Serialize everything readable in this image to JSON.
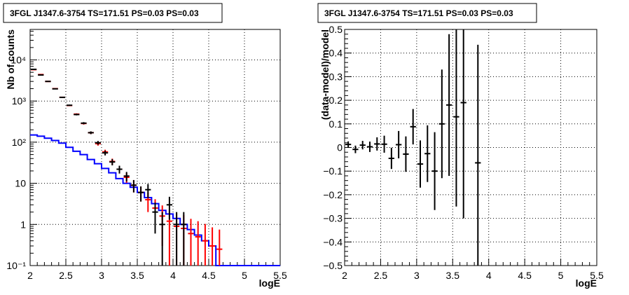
{
  "chart_data": [
    {
      "type": "histogram",
      "title": "3FGL J1347.6-3754 TS=171.51 PS=0.03 PS=0.03",
      "xlabel": "logE",
      "ylabel": "Nb of counts",
      "xlim": [
        2,
        5.5
      ],
      "ylim": [
        0.1,
        50000
      ],
      "yscale": "log",
      "grid": true,
      "x_ticks": [
        "2",
        "2.5",
        "3",
        "3.5",
        "4",
        "4.5",
        "5",
        "5.5"
      ],
      "y_ticks": [
        "10⁻¹",
        "1",
        "10",
        "10²",
        "10³",
        "10⁴"
      ],
      "colors": {
        "data": "#000000",
        "model": "#ff0000",
        "component": "#0000ff"
      },
      "series": [
        {
          "style": "points-with-errors",
          "color": "#000000",
          "x": [
            2.05,
            2.15,
            2.25,
            2.35,
            2.45,
            2.55,
            2.65,
            2.75,
            2.85,
            2.95,
            3.05,
            3.15,
            3.25,
            3.35,
            3.45,
            3.55,
            3.65,
            3.75,
            3.85,
            3.95,
            4.05,
            4.15
          ],
          "y": [
            5900,
            4300,
            3000,
            1980,
            1230,
            790,
            470,
            290,
            170,
            97,
            55,
            33,
            22,
            15,
            9,
            6,
            7,
            2,
            1,
            3,
            1,
            1
          ],
          "yerr": [
            77,
            66,
            55,
            44,
            35,
            28,
            22,
            17,
            13,
            10,
            7.4,
            5.7,
            4.7,
            3.9,
            3,
            2.4,
            2.6,
            1.4,
            1,
            1.7,
            1,
            1
          ]
        },
        {
          "style": "model-bins",
          "color": "#ff0000",
          "x": [
            2.05,
            2.15,
            2.25,
            2.35,
            2.45,
            2.55,
            2.65,
            2.75,
            2.85,
            2.95,
            3.05,
            3.15,
            3.25,
            3.35,
            3.45,
            3.55,
            3.65,
            3.75,
            3.85,
            3.95,
            4.05,
            4.15,
            4.25,
            4.35,
            4.45,
            4.55,
            4.65
          ],
          "y": [
            5800,
            4400,
            3000,
            2000,
            1230,
            780,
            480,
            285,
            170,
            92,
            58,
            34,
            22,
            14,
            9,
            6,
            4,
            2.5,
            1.6,
            1.2,
            0.9,
            0.8,
            0.6,
            0.5,
            0.4,
            0.3,
            0.25
          ],
          "yerr": [
            76,
            66,
            55,
            45,
            35,
            28,
            22,
            17,
            13,
            9.6,
            7.6,
            5.8,
            4.7,
            3.7,
            3,
            2.4,
            2,
            1.6,
            1.3,
            1.1,
            0.95,
            0.9,
            0.77,
            0.7,
            0.63,
            0.55,
            0.5
          ]
        },
        {
          "style": "step",
          "color": "#0000ff",
          "x": [
            2.05,
            2.15,
            2.25,
            2.35,
            2.45,
            2.55,
            2.65,
            2.75,
            2.85,
            2.95,
            3.05,
            3.15,
            3.25,
            3.35,
            3.45,
            3.55,
            3.65,
            3.75,
            3.85,
            3.95,
            4.05,
            4.15,
            4.25,
            4.35,
            4.45,
            4.55,
            4.65
          ],
          "y": [
            150,
            140,
            125,
            110,
            95,
            75,
            60,
            50,
            38,
            30,
            23,
            18,
            13,
            10,
            8,
            6,
            4.5,
            3.2,
            2.2,
            1.8,
            1.4,
            1.0,
            0.75,
            0.55,
            0.4,
            0.3,
            0.1
          ]
        }
      ]
    },
    {
      "type": "scatter",
      "title": "3FGL J1347.6-3754 TS=171.51 PS=0.03 PS=0.03",
      "xlabel": "logE",
      "ylabel": "(data-model)/model",
      "xlim": [
        2,
        5.5
      ],
      "ylim": [
        -0.5,
        0.5
      ],
      "grid": true,
      "x_ticks": [
        "2",
        "2.5",
        "3",
        "3.5",
        "4",
        "4.5",
        "5",
        "5.5"
      ],
      "y_ticks": [
        "−0.5",
        "−0.4",
        "−0.3",
        "−0.2",
        "−0.1",
        "0",
        "0.1",
        "0.2",
        "0.3",
        "0.4",
        "0.5"
      ],
      "series": [
        {
          "color": "#000000",
          "x": [
            2.05,
            2.15,
            2.25,
            2.35,
            2.45,
            2.55,
            2.65,
            2.75,
            2.85,
            2.95,
            3.05,
            3.15,
            3.25,
            3.35,
            3.45,
            3.55,
            3.65,
            3.85
          ],
          "y": [
            0.013,
            -0.008,
            0.01,
            0.003,
            0.015,
            0.014,
            -0.046,
            0.012,
            -0.028,
            0.088,
            -0.07,
            -0.026,
            -0.1,
            0.1,
            0.18,
            0.13,
            0.19,
            -0.065
          ],
          "yerr": [
            0.013,
            0.016,
            0.018,
            0.022,
            0.028,
            0.036,
            0.045,
            0.058,
            0.075,
            0.075,
            0.1,
            0.12,
            0.165,
            0.23,
            0.3,
            0.38,
            0.49,
            0.5
          ]
        }
      ]
    }
  ]
}
